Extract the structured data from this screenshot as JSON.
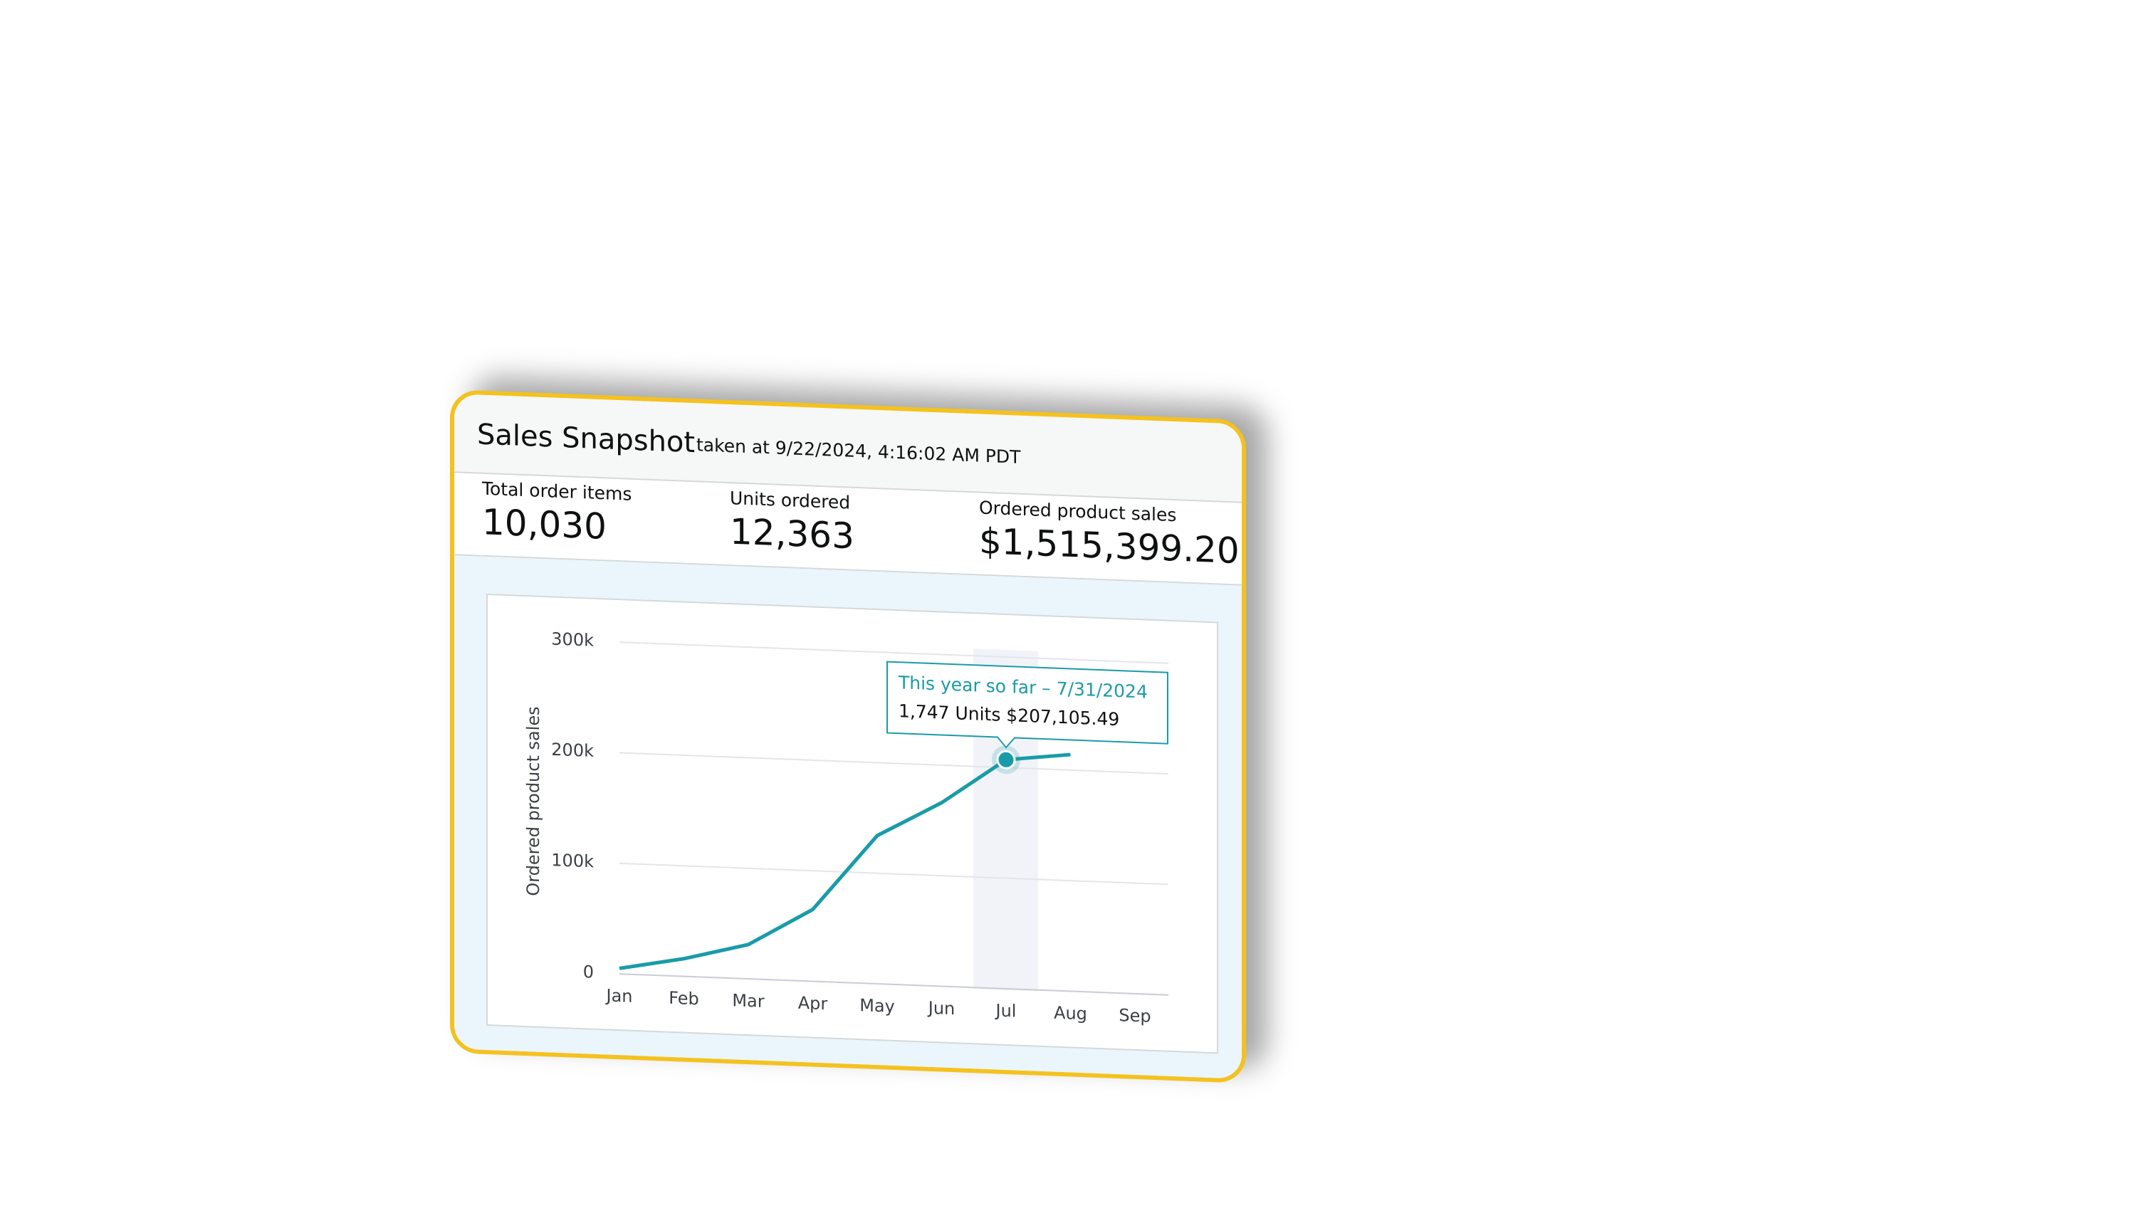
{
  "header": {
    "title": "Sales Snapshot",
    "subtitle": "taken at 9/22/2024, 4:16:02 AM PDT"
  },
  "metrics": [
    {
      "label": "Total order items",
      "value": "10,030"
    },
    {
      "label": "Units ordered",
      "value": "12,363"
    },
    {
      "label": "Ordered product sales",
      "value": "$1,515,399.20"
    }
  ],
  "chart_data": {
    "type": "line",
    "y_label": "Ordered product sales",
    "categories": [
      "Jan",
      "Feb",
      "Mar",
      "Apr",
      "May",
      "Jun",
      "Jul",
      "Aug",
      "Sep"
    ],
    "series": [
      {
        "name": "This year so far",
        "color": "#1a9ba8",
        "values": [
          5000,
          16000,
          31000,
          65000,
          134000,
          166000,
          207105.49,
          214000,
          null
        ]
      }
    ],
    "ylim": [
      0,
      300000
    ],
    "yticks": [
      {
        "value": 0,
        "label": "0"
      },
      {
        "value": 100000,
        "label": "100k"
      },
      {
        "value": 200000,
        "label": "200k"
      },
      {
        "value": 300000,
        "label": "300k"
      }
    ],
    "grid": true,
    "tooltip": {
      "title": "This year so far – 7/31/2024",
      "body": "1,747 Units $207,105.49"
    }
  }
}
